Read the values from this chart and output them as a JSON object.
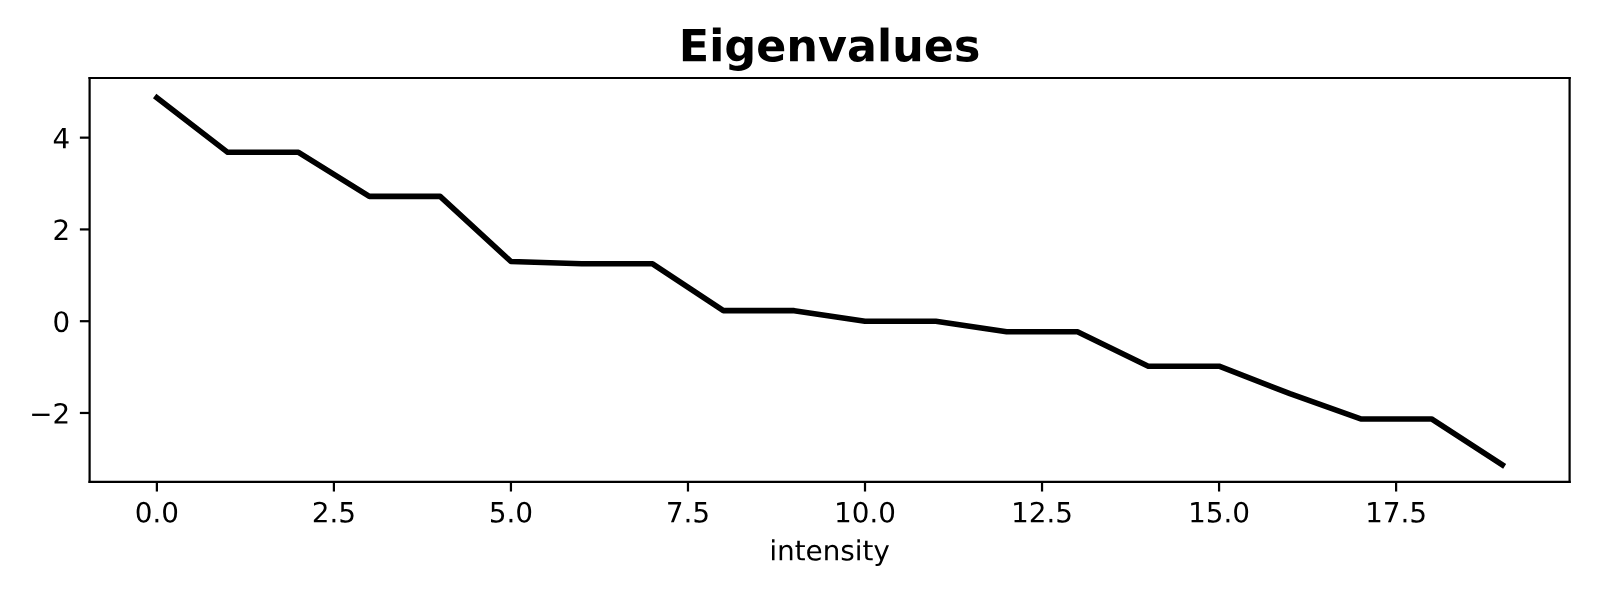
{
  "chart_data": {
    "type": "line",
    "title": "Eigenvalues",
    "xlabel": "intensity",
    "x": [
      0,
      1,
      2,
      3,
      4,
      5,
      6,
      7,
      8,
      9,
      10,
      11,
      12,
      13,
      14,
      15,
      16,
      17,
      18,
      19
    ],
    "series": [
      {
        "color": "#000000",
        "values": [
          4.87,
          3.68,
          3.68,
          2.72,
          2.72,
          1.3,
          1.25,
          1.25,
          0.23,
          0.23,
          0.0,
          0.0,
          -0.23,
          -0.23,
          -0.98,
          -0.98,
          -1.58,
          -2.13,
          -2.13,
          -3.13
        ]
      }
    ],
    "xlim": [
      -0.95,
      19.95
    ],
    "ylim": [
      -3.5,
      5.3
    ],
    "xticks": [
      {
        "value": 0,
        "label": "0.0"
      },
      {
        "value": 2.5,
        "label": "2.5"
      },
      {
        "value": 5,
        "label": "5.0"
      },
      {
        "value": 7.5,
        "label": "7.5"
      },
      {
        "value": 10,
        "label": "10.0"
      },
      {
        "value": 12.5,
        "label": "12.5"
      },
      {
        "value": 15,
        "label": "15.0"
      },
      {
        "value": 17.5,
        "label": "17.5"
      }
    ],
    "yticks": [
      {
        "value": -2,
        "label": "−2"
      },
      0,
      2,
      4
    ],
    "grid": false,
    "legend": false
  }
}
